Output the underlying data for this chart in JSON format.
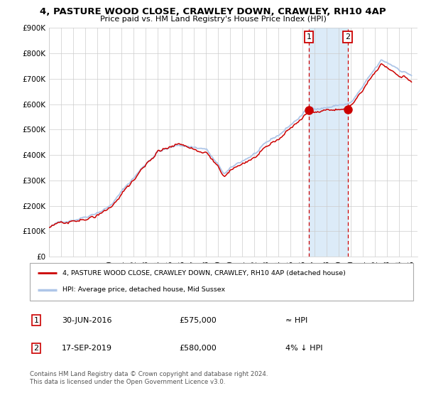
{
  "title": "4, PASTURE WOOD CLOSE, CRAWLEY DOWN, CRAWLEY, RH10 4AP",
  "subtitle": "Price paid vs. HM Land Registry's House Price Index (HPI)",
  "legend_line1": "4, PASTURE WOOD CLOSE, CRAWLEY DOWN, CRAWLEY, RH10 4AP (detached house)",
  "legend_line2": "HPI: Average price, detached house, Mid Sussex",
  "annotation1_label": "1",
  "annotation1_date": "30-JUN-2016",
  "annotation1_price": "£575,000",
  "annotation1_hpi": "≈ HPI",
  "annotation2_label": "2",
  "annotation2_date": "17-SEP-2019",
  "annotation2_price": "£580,000",
  "annotation2_hpi": "4% ↓ HPI",
  "footer1": "Contains HM Land Registry data © Crown copyright and database right 2024.",
  "footer2": "This data is licensed under the Open Government Licence v3.0.",
  "hpi_color": "#aec6e8",
  "price_color": "#cc0000",
  "dashed_color": "#cc0000",
  "shade_color": "#d6e8f7",
  "ylim": [
    0,
    900000
  ],
  "yticks": [
    0,
    100000,
    200000,
    300000,
    400000,
    500000,
    600000,
    700000,
    800000,
    900000
  ],
  "ytick_labels": [
    "£0",
    "£100K",
    "£200K",
    "£300K",
    "£400K",
    "£500K",
    "£600K",
    "£700K",
    "£800K",
    "£900K"
  ],
  "sale1_x": 2016.5,
  "sale1_y": 575000,
  "sale2_x": 2019.72,
  "sale2_y": 580000,
  "shade_x_start": 2016.5,
  "shade_x_end": 2019.72,
  "xlim_start": 1995,
  "xlim_end": 2025.5
}
